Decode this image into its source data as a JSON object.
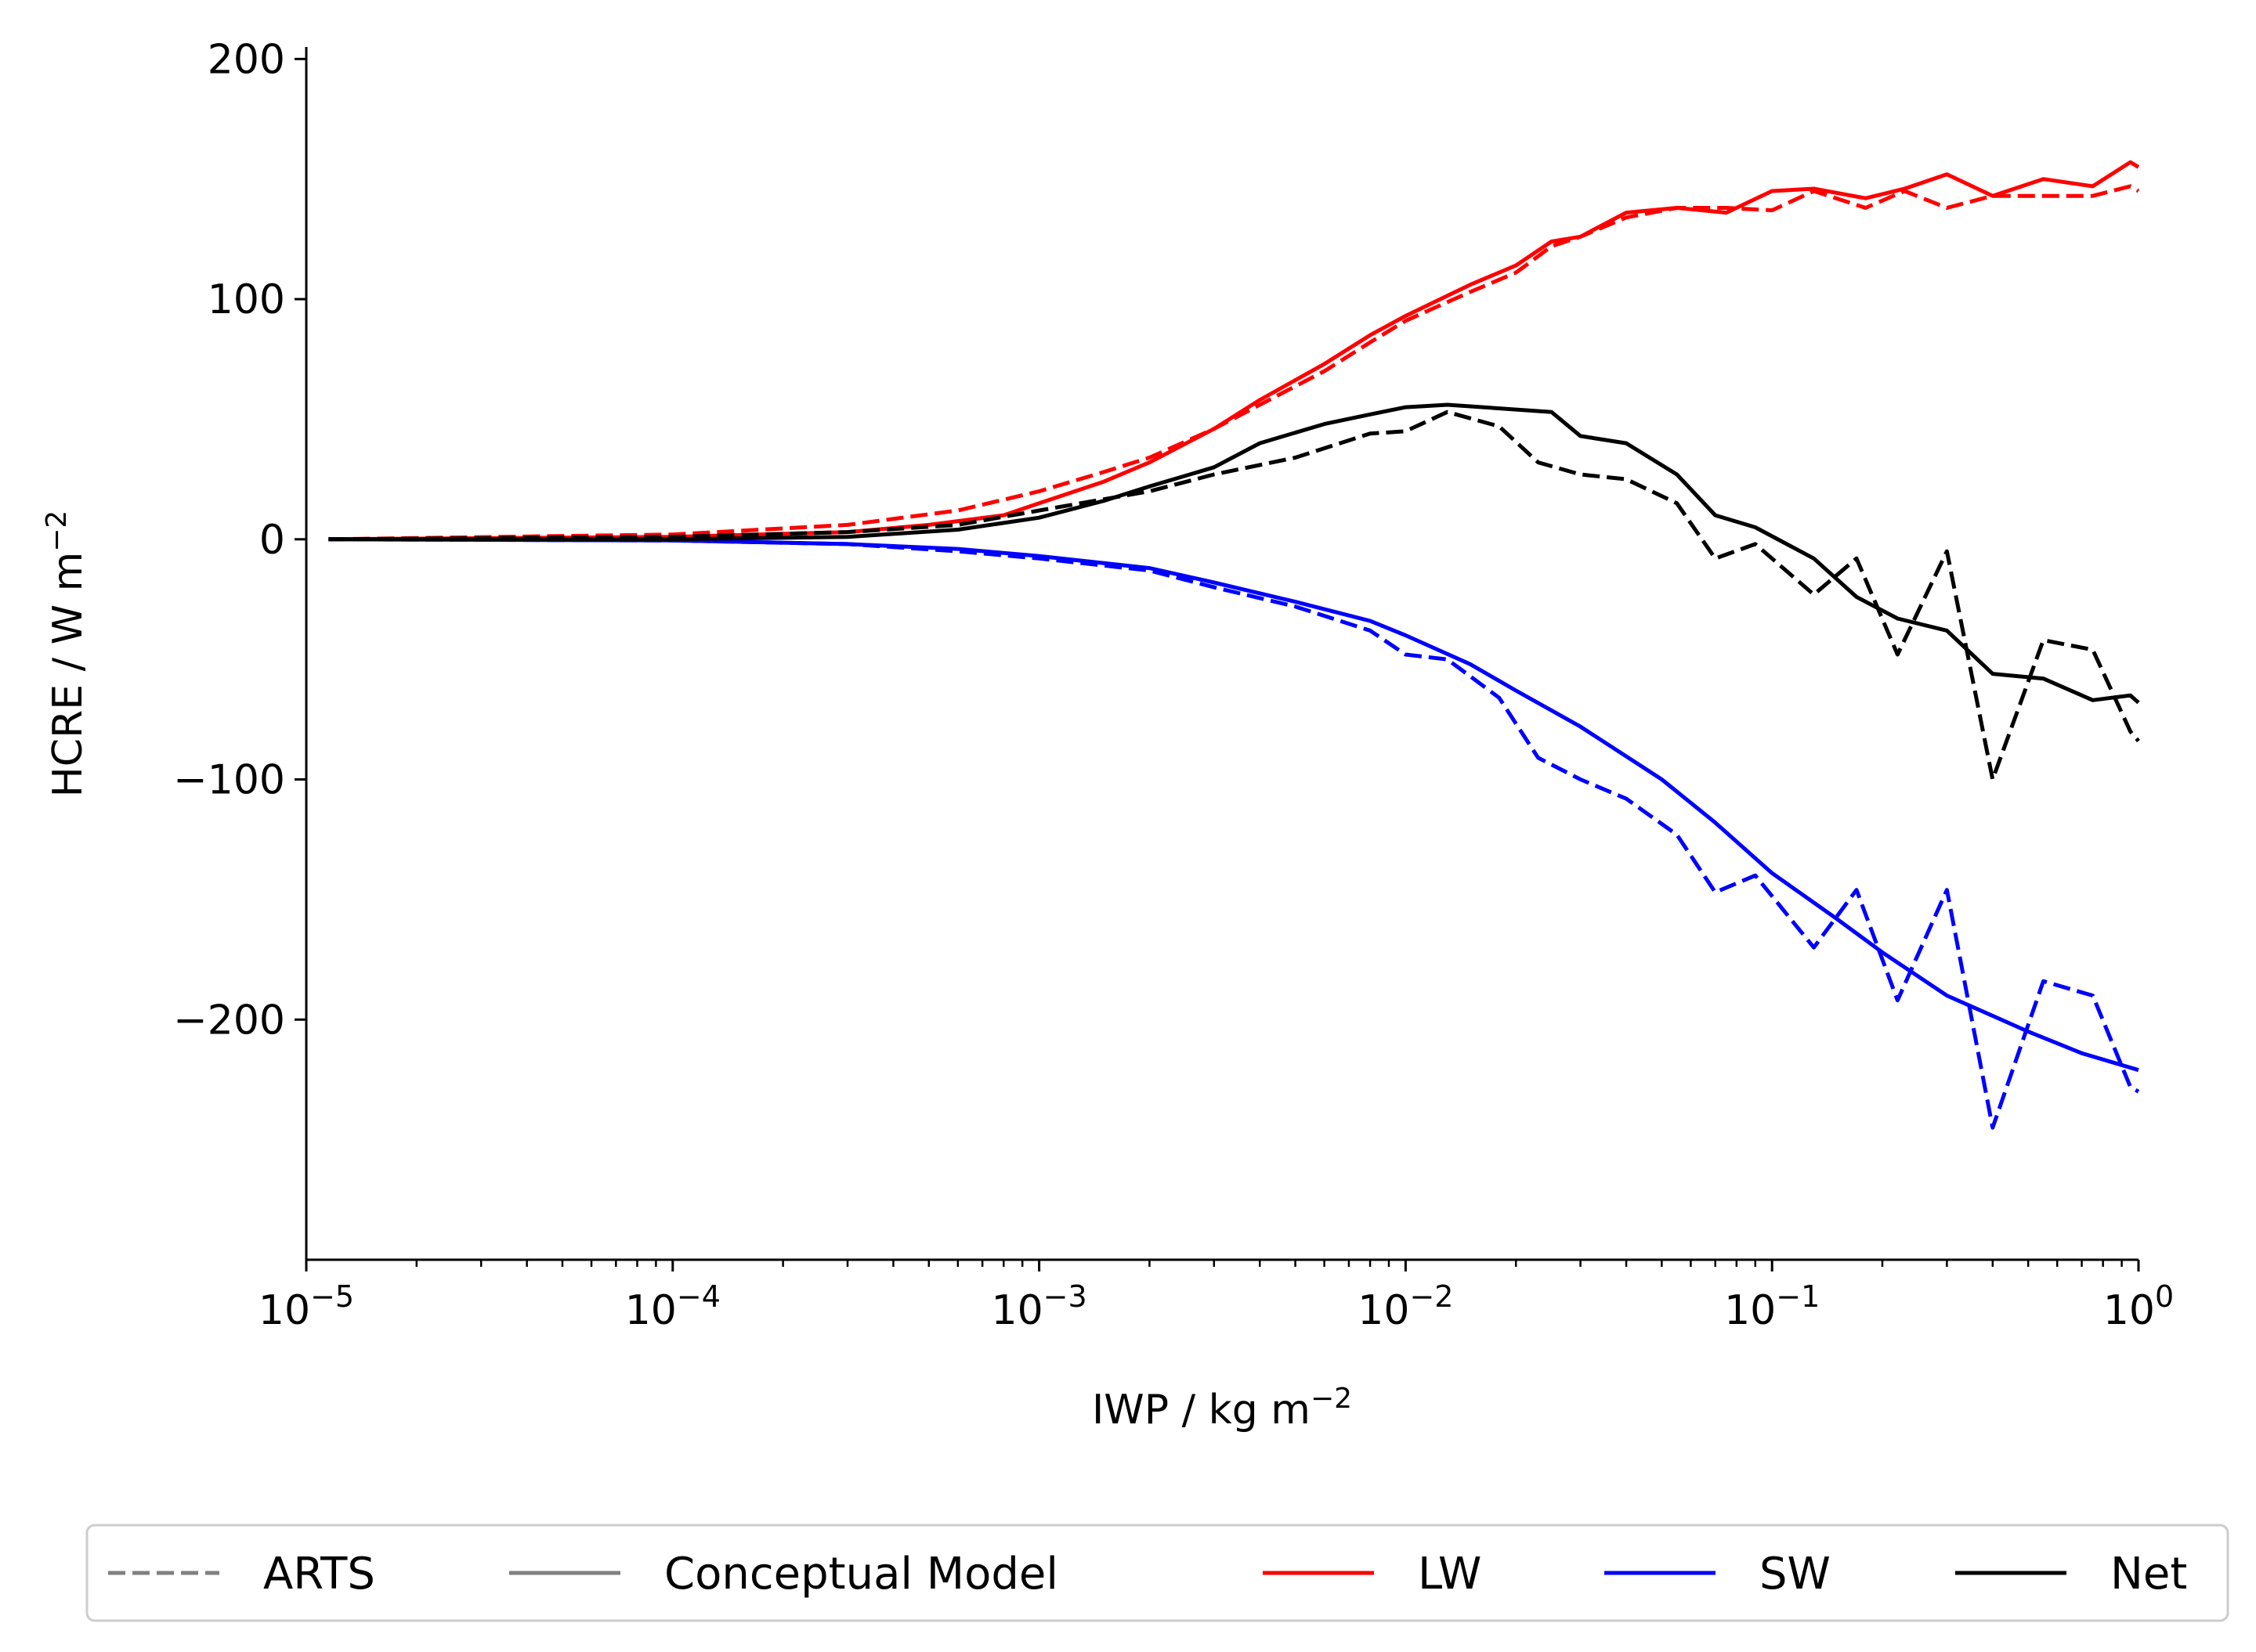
{
  "chart_data": {
    "type": "line",
    "xscale": "log",
    "xlim": [
      1e-05,
      1
    ],
    "ylim": [
      -300,
      205
    ],
    "xlabel": {
      "base": "IWP / kg m",
      "sup": "−2"
    },
    "ylabel": {
      "base": "HCRE / W m",
      "sup": "−2"
    },
    "x_ticks": [
      {
        "base": "10",
        "exp": "−5"
      },
      {
        "base": "10",
        "exp": "−4"
      },
      {
        "base": "10",
        "exp": "−3"
      },
      {
        "base": "10",
        "exp": "−2"
      },
      {
        "base": "10",
        "exp": "−1"
      },
      {
        "base": "10",
        "exp": "0"
      }
    ],
    "x_tick_values": [
      1e-05,
      0.0001,
      0.001,
      0.01,
      0.1,
      1
    ],
    "y_ticks": [
      "−200",
      "−100",
      "0",
      "100",
      "200"
    ],
    "y_tick_values": [
      -200,
      -100,
      0,
      100,
      200
    ],
    "grid": false,
    "legend": {
      "position": "bottom",
      "entries": [
        {
          "label": "ARTS",
          "color": "#808080",
          "style": "dashed"
        },
        {
          "label": "Conceptual Model",
          "color": "#808080",
          "style": "solid"
        },
        {
          "label": "LW",
          "color": "#ff0000",
          "style": "solid"
        },
        {
          "label": "SW",
          "color": "#0000ff",
          "style": "solid"
        },
        {
          "label": "Net",
          "color": "#000000",
          "style": "solid"
        }
      ]
    },
    "colors": {
      "LW": "#ff0000",
      "SW": "#0000ff",
      "Net": "#000000",
      "legend_gray": "#808080"
    },
    "series": [
      {
        "component": "LW",
        "source": "Conceptual Model",
        "color": "#ff0000",
        "style": "solid",
        "points": [
          [
            1.15e-05,
            0
          ],
          [
            0.0001,
            1
          ],
          [
            0.0003,
            3
          ],
          [
            0.0005,
            6
          ],
          [
            0.0008,
            10
          ],
          [
            0.001,
            15
          ],
          [
            0.0015,
            24
          ],
          [
            0.002,
            32
          ],
          [
            0.003,
            46
          ],
          [
            0.004,
            58
          ],
          [
            0.006,
            73
          ],
          [
            0.008,
            85
          ],
          [
            0.01,
            93
          ],
          [
            0.015,
            106
          ],
          [
            0.02,
            114
          ],
          [
            0.025,
            124
          ],
          [
            0.03,
            126
          ],
          [
            0.04,
            136
          ],
          [
            0.055,
            138
          ],
          [
            0.075,
            136
          ],
          [
            0.1,
            145
          ],
          [
            0.13,
            146
          ],
          [
            0.18,
            142
          ],
          [
            0.23,
            146
          ],
          [
            0.3,
            152
          ],
          [
            0.4,
            143
          ],
          [
            0.55,
            150
          ],
          [
            0.75,
            147
          ],
          [
            0.95,
            157
          ],
          [
            1.0,
            155
          ]
        ]
      },
      {
        "component": "LW",
        "source": "ARTS",
        "color": "#ff0000",
        "style": "dashed",
        "points": [
          [
            1.15e-05,
            0
          ],
          [
            0.0001,
            2
          ],
          [
            0.0003,
            6
          ],
          [
            0.0006,
            12
          ],
          [
            0.001,
            20
          ],
          [
            0.0015,
            28
          ],
          [
            0.002,
            34
          ],
          [
            0.003,
            46
          ],
          [
            0.004,
            56
          ],
          [
            0.006,
            70
          ],
          [
            0.008,
            82
          ],
          [
            0.01,
            91
          ],
          [
            0.015,
            103
          ],
          [
            0.02,
            111
          ],
          [
            0.025,
            122
          ],
          [
            0.03,
            126
          ],
          [
            0.04,
            134
          ],
          [
            0.055,
            138
          ],
          [
            0.075,
            138
          ],
          [
            0.1,
            137
          ],
          [
            0.13,
            145
          ],
          [
            0.18,
            138
          ],
          [
            0.23,
            145
          ],
          [
            0.3,
            138
          ],
          [
            0.4,
            143
          ],
          [
            0.55,
            143
          ],
          [
            0.75,
            143
          ],
          [
            0.95,
            147
          ],
          [
            1.0,
            145
          ]
        ]
      },
      {
        "component": "SW",
        "source": "Conceptual Model",
        "color": "#0000ff",
        "style": "solid",
        "points": [
          [
            1.15e-05,
            0
          ],
          [
            0.0001,
            -0.5
          ],
          [
            0.0003,
            -2
          ],
          [
            0.0006,
            -4
          ],
          [
            0.001,
            -7
          ],
          [
            0.002,
            -12
          ],
          [
            0.003,
            -18
          ],
          [
            0.005,
            -26
          ],
          [
            0.008,
            -34
          ],
          [
            0.01,
            -40
          ],
          [
            0.015,
            -52
          ],
          [
            0.02,
            -63
          ],
          [
            0.03,
            -78
          ],
          [
            0.05,
            -100
          ],
          [
            0.07,
            -118
          ],
          [
            0.1,
            -139
          ],
          [
            0.15,
            -158
          ],
          [
            0.2,
            -172
          ],
          [
            0.3,
            -190
          ],
          [
            0.5,
            -205
          ],
          [
            0.7,
            -214
          ],
          [
            1.0,
            -221
          ]
        ]
      },
      {
        "component": "SW",
        "source": "ARTS",
        "color": "#0000ff",
        "style": "dashed",
        "points": [
          [
            1.15e-05,
            0
          ],
          [
            0.0001,
            -0.5
          ],
          [
            0.0003,
            -2
          ],
          [
            0.0006,
            -5
          ],
          [
            0.001,
            -8
          ],
          [
            0.002,
            -13
          ],
          [
            0.003,
            -20
          ],
          [
            0.005,
            -28
          ],
          [
            0.008,
            -38
          ],
          [
            0.01,
            -48
          ],
          [
            0.013,
            -50
          ],
          [
            0.018,
            -66
          ],
          [
            0.023,
            -91
          ],
          [
            0.03,
            -100
          ],
          [
            0.04,
            -108
          ],
          [
            0.055,
            -123
          ],
          [
            0.07,
            -147
          ],
          [
            0.09,
            -140
          ],
          [
            0.13,
            -170
          ],
          [
            0.17,
            -146
          ],
          [
            0.22,
            -192
          ],
          [
            0.3,
            -146
          ],
          [
            0.4,
            -245
          ],
          [
            0.55,
            -184
          ],
          [
            0.75,
            -190
          ],
          [
            0.95,
            -228
          ],
          [
            1.0,
            -230
          ]
        ]
      },
      {
        "component": "Net",
        "source": "Conceptual Model",
        "color": "#000000",
        "style": "solid",
        "points": [
          [
            1.15e-05,
            0
          ],
          [
            0.0001,
            0
          ],
          [
            0.0003,
            1
          ],
          [
            0.0006,
            4
          ],
          [
            0.001,
            9
          ],
          [
            0.0015,
            16
          ],
          [
            0.002,
            22
          ],
          [
            0.003,
            30
          ],
          [
            0.004,
            40
          ],
          [
            0.006,
            48
          ],
          [
            0.008,
            52
          ],
          [
            0.01,
            55
          ],
          [
            0.013,
            56
          ],
          [
            0.025,
            53
          ],
          [
            0.03,
            43
          ],
          [
            0.04,
            40
          ],
          [
            0.055,
            27
          ],
          [
            0.07,
            10
          ],
          [
            0.09,
            5
          ],
          [
            0.13,
            -8
          ],
          [
            0.17,
            -24
          ],
          [
            0.22,
            -33
          ],
          [
            0.3,
            -38
          ],
          [
            0.4,
            -56
          ],
          [
            0.55,
            -58
          ],
          [
            0.75,
            -67
          ],
          [
            0.95,
            -65
          ],
          [
            1.0,
            -68
          ]
        ]
      },
      {
        "component": "Net",
        "source": "ARTS",
        "color": "#000000",
        "style": "dashed",
        "points": [
          [
            1.15e-05,
            0
          ],
          [
            0.0001,
            1
          ],
          [
            0.0003,
            3
          ],
          [
            0.0006,
            6
          ],
          [
            0.001,
            12
          ],
          [
            0.002,
            20
          ],
          [
            0.003,
            27
          ],
          [
            0.005,
            34
          ],
          [
            0.008,
            44
          ],
          [
            0.01,
            45
          ],
          [
            0.013,
            53
          ],
          [
            0.018,
            47
          ],
          [
            0.023,
            32
          ],
          [
            0.03,
            27
          ],
          [
            0.04,
            25
          ],
          [
            0.055,
            15
          ],
          [
            0.07,
            -8
          ],
          [
            0.09,
            -2
          ],
          [
            0.13,
            -23
          ],
          [
            0.17,
            -8
          ],
          [
            0.22,
            -48
          ],
          [
            0.3,
            -5
          ],
          [
            0.4,
            -100
          ],
          [
            0.55,
            -42
          ],
          [
            0.75,
            -46
          ],
          [
            0.95,
            -80
          ],
          [
            1.0,
            -84
          ]
        ]
      }
    ]
  }
}
